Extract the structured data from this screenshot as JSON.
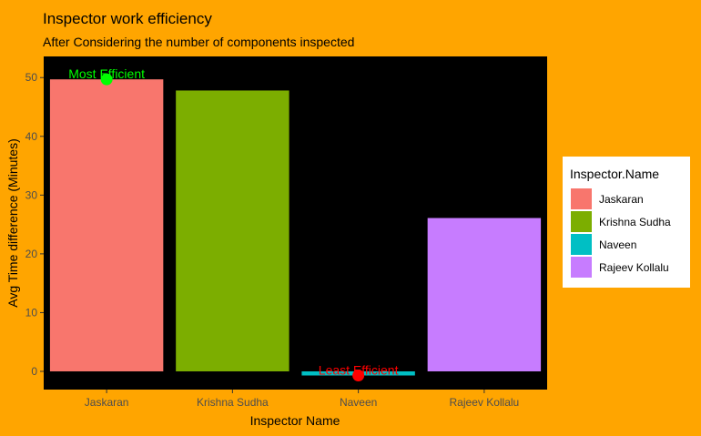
{
  "chart_data": {
    "type": "bar",
    "title": "Inspector work efficiency",
    "subtitle": "After Considering the number of components inspected",
    "xlabel": "Inspector Name",
    "ylabel": "Avg Time difference (Minutes)",
    "categories": [
      "Jaskaran",
      "Krishna Sudha",
      "Naveen",
      "Rajeev Kollalu"
    ],
    "values": [
      49.7,
      47.8,
      -0.7,
      26.1
    ],
    "ylim": [
      -3.1,
      53.6
    ],
    "yticks": [
      0,
      10,
      20,
      30,
      40,
      50
    ],
    "grid": false,
    "colors": [
      "#F8766D",
      "#7CAE00",
      "#00BFC4",
      "#C77CFF"
    ],
    "legend": {
      "title": "Inspector.Name",
      "position": "right",
      "entries": [
        "Jaskaran",
        "Krishna Sudha",
        "Naveen",
        "Rajeev Kollalu"
      ]
    },
    "annotations": [
      {
        "label": "Most Efficient",
        "category": "Jaskaran",
        "y": 49.7,
        "color": "#00FF00"
      },
      {
        "label": "Least Efficient",
        "category": "Naveen",
        "y": -0.7,
        "color": "#FF0000"
      }
    ],
    "panel_background": "#000000",
    "plot_background": "#FFA500"
  }
}
